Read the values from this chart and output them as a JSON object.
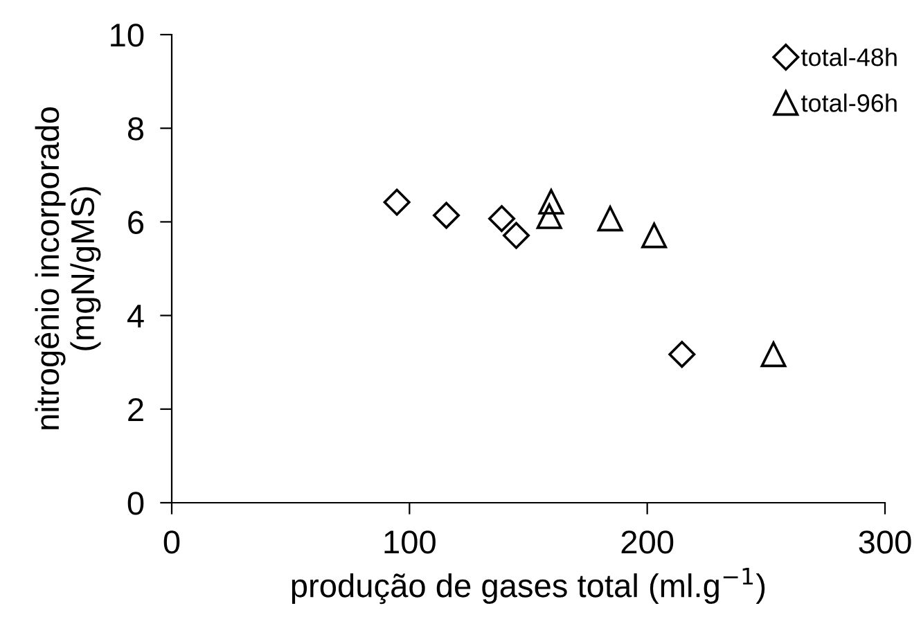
{
  "chart_data": {
    "type": "scatter",
    "xlabel": "produção de gases total (ml.g$^{−1}$)",
    "ylabel": "nitrogênio incorporado\n(mgN/gMS)",
    "series": [
      {
        "name": "total-48h",
        "color": "#000000",
        "marker": "diamond",
        "x": [
          94.7,
          115.5,
          138.8,
          144.9,
          214.6
        ],
        "values": [
          6.42,
          6.14,
          6.07,
          5.71,
          3.17
        ]
      },
      {
        "name": "total-96h",
        "color": "#000000",
        "marker": "triangle",
        "x": [
          159.6,
          158.8,
          184.4,
          202.9,
          253.1
        ],
        "values": [
          6.43,
          6.12,
          6.07,
          5.71,
          3.17
        ]
      }
    ],
    "xlim": [
      0,
      300
    ],
    "xticks": [
      0,
      100,
      200,
      300
    ],
    "ylim": [
      0,
      10
    ],
    "yticks": [
      0,
      2,
      4,
      6,
      8,
      10
    ],
    "grid": false,
    "legend": "top right"
  }
}
